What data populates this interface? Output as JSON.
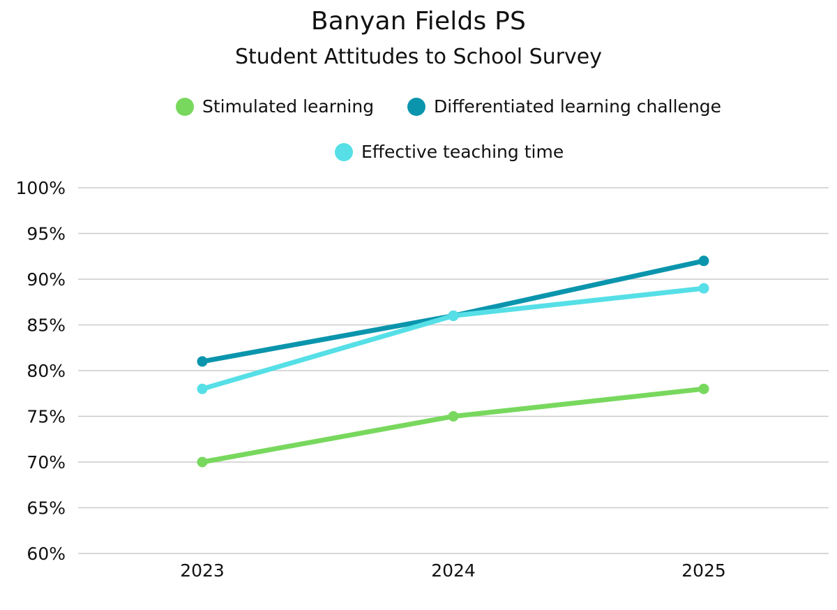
{
  "chart_data": {
    "type": "line",
    "title": "Banyan Fields PS",
    "subtitle": "Student Attitudes to School Survey",
    "categories": [
      "2023",
      "2024",
      "2025"
    ],
    "series": [
      {
        "name": "Stimulated learning",
        "values": [
          70,
          75,
          78
        ],
        "color": "#78d85e"
      },
      {
        "name": "Differentiated learning challenge",
        "values": [
          81,
          86,
          92
        ],
        "color": "#0b95ad"
      },
      {
        "name": "Effective teaching time",
        "values": [
          78,
          86,
          89
        ],
        "color": "#56dfe6"
      }
    ],
    "ylim": [
      60,
      100
    ],
    "yticks": [
      60,
      65,
      70,
      75,
      80,
      85,
      90,
      95,
      100
    ],
    "ytick_labels": [
      "60%",
      "65%",
      "70%",
      "75%",
      "80%",
      "85%",
      "90%",
      "95%",
      "100%"
    ],
    "y_format": "percent",
    "grid": true,
    "legend_position": "top",
    "gridline_color": "#cccccc"
  }
}
